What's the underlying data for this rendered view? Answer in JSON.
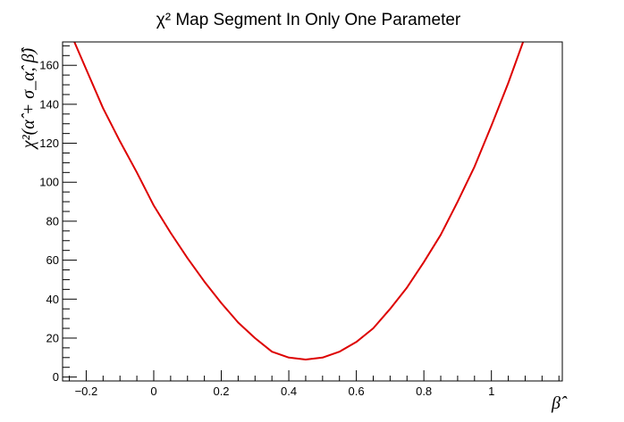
{
  "chart_data": {
    "type": "line",
    "title": "χ² Map Segment In Only One Parameter",
    "xlabel": "β̂",
    "ylabel": "χ²(α̂ + σ_α̂, β̂)",
    "xlim": [
      -0.27,
      1.21
    ],
    "ylim": [
      -2,
      172
    ],
    "grid": false,
    "x_ticks": [
      -0.2,
      0,
      0.2,
      0.4,
      0.6,
      0.8,
      1
    ],
    "x_tick_labels": [
      "−0.2",
      "0",
      "0.2",
      "0.4",
      "0.6",
      "0.8",
      "1"
    ],
    "y_ticks": [
      0,
      20,
      40,
      60,
      80,
      100,
      120,
      140,
      160
    ],
    "y_tick_labels": [
      "0",
      "20",
      "40",
      "60",
      "80",
      "100",
      "120",
      "140",
      "160"
    ],
    "series": [
      {
        "color": "#dd0000",
        "x": [
          -0.24,
          -0.2,
          -0.15,
          -0.1,
          -0.05,
          0.0,
          0.05,
          0.1,
          0.15,
          0.2,
          0.25,
          0.3,
          0.35,
          0.4,
          0.45,
          0.5,
          0.55,
          0.6,
          0.65,
          0.7,
          0.75,
          0.8,
          0.85,
          0.9,
          0.95,
          1.0,
          1.05,
          1.1
        ],
        "y": [
          174,
          158,
          138,
          121,
          105,
          88,
          74,
          61,
          49,
          38,
          28,
          20,
          13,
          10,
          9,
          10,
          13,
          18,
          25,
          35,
          46,
          59,
          73,
          90,
          108,
          129,
          151,
          175
        ]
      }
    ]
  }
}
